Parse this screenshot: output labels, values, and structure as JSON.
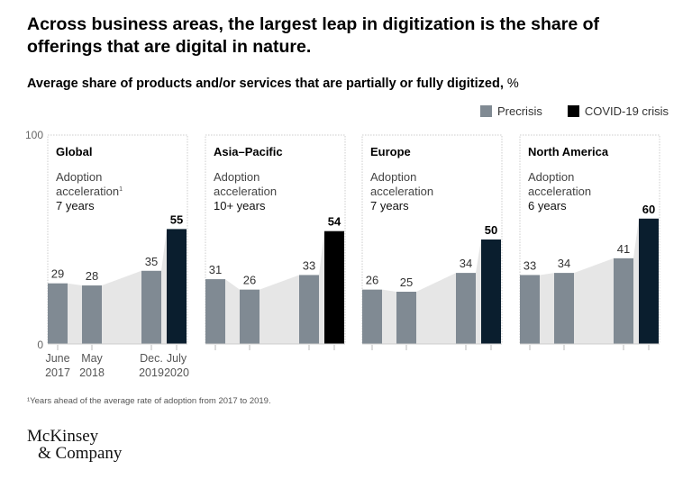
{
  "title": "Across business areas, the largest leap in digitization is the share of offerings that are digital in nature.",
  "subtitle": "Average share of products and/or services that are partially or fully digitized,",
  "subtitle_unit": "%",
  "legend": [
    {
      "label": "Precrisis",
      "color": "#808a93"
    },
    {
      "label": "COVID-19 crisis",
      "color": "#000000"
    }
  ],
  "footnote": "¹Years ahead of the average rate of adoption from 2017 to 2019.",
  "logo": {
    "line1": "McKinsey",
    "line2": "& Company"
  },
  "chart_data": {
    "type": "bar",
    "ylim": [
      0,
      100
    ],
    "yticks": [
      "0",
      "100"
    ],
    "categories": [
      [
        "June",
        "2017"
      ],
      [
        "May",
        "2018"
      ],
      [
        "Dec.",
        "2019"
      ],
      [
        "July",
        "2020"
      ]
    ],
    "colors": {
      "precrisis": "#808a93",
      "crisis": "#0a1e2e",
      "crisis_asia": "#000000",
      "area": "#e6e6e6"
    },
    "panels": [
      {
        "name": "Global",
        "note_label": "Adoption",
        "note_label2": "acceleration",
        "note_sup": "1",
        "note_value": "7 years",
        "values": [
          29,
          28,
          35,
          55
        ]
      },
      {
        "name": "Asia–Pacific",
        "note_label": "Adoption",
        "note_label2": "acceleration",
        "note_sup": "",
        "note_value": "10+ years",
        "values": [
          31,
          26,
          33,
          54
        ]
      },
      {
        "name": "Europe",
        "note_label": "Adoption",
        "note_label2": "acceleration",
        "note_sup": "",
        "note_value": "7 years",
        "values": [
          26,
          25,
          34,
          50
        ]
      },
      {
        "name": "North America",
        "note_label": "Adoption",
        "note_label2": "acceleration",
        "note_sup": "",
        "note_value": "6 years",
        "values": [
          33,
          34,
          41,
          60
        ]
      }
    ]
  }
}
